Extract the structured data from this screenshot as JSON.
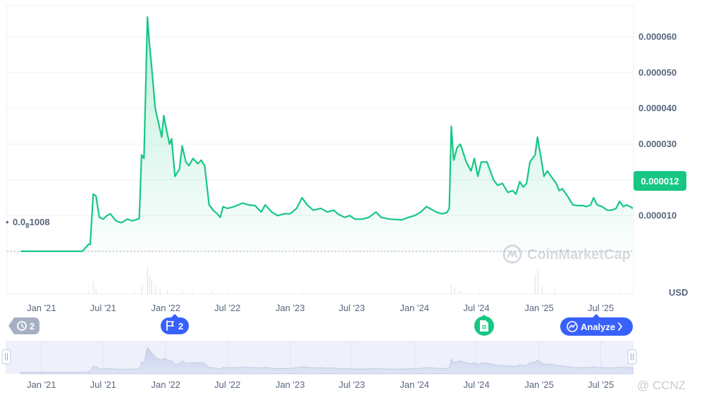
{
  "chart_data": {
    "type": "area",
    "currency_label": "USD",
    "y_ticks": [
      "0.000060",
      "0.000050",
      "0.000040",
      "0.000030",
      "0.000020",
      "0.000010"
    ],
    "y_tick_values": [
      6e-05,
      5e-05,
      4e-05,
      3e-05,
      2e-05,
      1e-05
    ],
    "ylim": [
      0,
      6.88e-05
    ],
    "x_ticks": [
      "Jan '21",
      "Jul '21",
      "Jan '22",
      "Jul '22",
      "Jan '23",
      "Jul '23",
      "Jan '24",
      "Jul '24",
      "Jan '25",
      "Jul '25"
    ],
    "x_tick_dates": [
      "2021-01-01",
      "2021-07-01",
      "2022-01-01",
      "2022-07-01",
      "2023-01-01",
      "2023-07-01",
      "2024-01-01",
      "2024-07-01",
      "2025-01-01",
      "2025-07-01"
    ],
    "xlim": [
      "2020-09-22",
      "2025-10-05"
    ],
    "start_price_label_main": "0.0",
    "start_price_label_sub": "8",
    "start_price_label_tail": "1008",
    "start_price": 1.008e-09,
    "current_price_label": "0.000012",
    "current_price": 1.2e-05,
    "line_color": "#16c784",
    "grid": true,
    "series": [
      {
        "values": [
          [
            "2020-11-01",
            1e-09
          ],
          [
            "2021-01-01",
            1e-09
          ],
          [
            "2021-03-01",
            1e-09
          ],
          [
            "2021-05-01",
            1e-09
          ],
          [
            "2021-05-20",
            2e-06
          ],
          [
            "2021-05-24",
            1.9e-06
          ],
          [
            "2021-06-02",
            1.6e-05
          ],
          [
            "2021-06-10",
            1.55e-05
          ],
          [
            "2021-06-20",
            9.5e-06
          ],
          [
            "2021-07-01",
            9e-06
          ],
          [
            "2021-07-12",
            1e-05
          ],
          [
            "2021-07-22",
            1.05e-05
          ],
          [
            "2021-08-08",
            8.5e-06
          ],
          [
            "2021-08-24",
            8e-06
          ],
          [
            "2021-09-10",
            9e-06
          ],
          [
            "2021-09-25",
            8.5e-06
          ],
          [
            "2021-10-15",
            9.2e-06
          ],
          [
            "2021-10-22",
            2.7e-05
          ],
          [
            "2021-10-29",
            2.6e-05
          ],
          [
            "2021-11-08",
            6.56e-05
          ],
          [
            "2021-11-14",
            5.8e-05
          ],
          [
            "2021-11-20",
            5.2e-05
          ],
          [
            "2021-12-01",
            4e-05
          ],
          [
            "2021-12-20",
            3.2e-05
          ],
          [
            "2021-12-26",
            3.8e-05
          ],
          [
            "2022-01-03",
            3.4e-05
          ],
          [
            "2022-01-12",
            3e-05
          ],
          [
            "2022-01-18",
            3.15e-05
          ],
          [
            "2022-01-28",
            2.1e-05
          ],
          [
            "2022-02-10",
            2.3e-05
          ],
          [
            "2022-02-18",
            2.95e-05
          ],
          [
            "2022-03-01",
            2.5e-05
          ],
          [
            "2022-03-10",
            2.4e-05
          ],
          [
            "2022-03-22",
            2.6e-05
          ],
          [
            "2022-04-05",
            2.45e-05
          ],
          [
            "2022-04-15",
            2.55e-05
          ],
          [
            "2022-04-25",
            2.4e-05
          ],
          [
            "2022-05-08",
            1.3e-05
          ],
          [
            "2022-05-20",
            1.15e-05
          ],
          [
            "2022-06-01",
            1.05e-05
          ],
          [
            "2022-06-10",
            9.5e-06
          ],
          [
            "2022-06-18",
            1.25e-05
          ],
          [
            "2022-07-01",
            1.2e-05
          ],
          [
            "2022-07-20",
            1.25e-05
          ],
          [
            "2022-08-15",
            1.35e-05
          ],
          [
            "2022-09-01",
            1.3e-05
          ],
          [
            "2022-09-20",
            1.28e-05
          ],
          [
            "2022-10-08",
            1.1e-05
          ],
          [
            "2022-10-20",
            1.3e-05
          ],
          [
            "2022-11-08",
            1.1e-05
          ],
          [
            "2022-11-25",
            1e-05
          ],
          [
            "2022-12-15",
            1.05e-05
          ],
          [
            "2023-01-01",
            1.05e-05
          ],
          [
            "2023-01-20",
            1.2e-05
          ],
          [
            "2023-02-05",
            1.5e-05
          ],
          [
            "2023-02-20",
            1.3e-05
          ],
          [
            "2023-03-10",
            1.15e-05
          ],
          [
            "2023-04-01",
            1.2e-05
          ],
          [
            "2023-04-20",
            1.1e-05
          ],
          [
            "2023-05-10",
            1.15e-05
          ],
          [
            "2023-05-20",
            1.05e-05
          ],
          [
            "2023-06-10",
            9.5e-06
          ],
          [
            "2023-06-25",
            1e-05
          ],
          [
            "2023-07-10",
            9e-06
          ],
          [
            "2023-08-01",
            9e-06
          ],
          [
            "2023-08-20",
            9.5e-06
          ],
          [
            "2023-09-10",
            1.1e-05
          ],
          [
            "2023-09-25",
            9.5e-06
          ],
          [
            "2023-10-20",
            9e-06
          ],
          [
            "2023-11-25",
            8.8e-06
          ],
          [
            "2023-12-15",
            9.5e-06
          ],
          [
            "2024-01-01",
            1e-05
          ],
          [
            "2024-01-20",
            1.1e-05
          ],
          [
            "2024-02-05",
            1.25e-05
          ],
          [
            "2024-02-15",
            1.2e-05
          ],
          [
            "2024-03-05",
            1.1e-05
          ],
          [
            "2024-03-20",
            1.05e-05
          ],
          [
            "2024-04-05",
            1.08e-05
          ],
          [
            "2024-04-12",
            1.2e-05
          ],
          [
            "2024-04-18",
            3.5e-05
          ],
          [
            "2024-04-25",
            2.55e-05
          ],
          [
            "2024-05-05",
            2.9e-05
          ],
          [
            "2024-05-15",
            3e-05
          ],
          [
            "2024-05-25",
            2.7e-05
          ],
          [
            "2024-06-01",
            2.5e-05
          ],
          [
            "2024-06-15",
            2.25e-05
          ],
          [
            "2024-06-25",
            2.6e-05
          ],
          [
            "2024-07-05",
            2.1e-05
          ],
          [
            "2024-07-15",
            2.5e-05
          ],
          [
            "2024-08-01",
            2.5e-05
          ],
          [
            "2024-08-20",
            2e-05
          ],
          [
            "2024-09-01",
            1.85e-05
          ],
          [
            "2024-09-15",
            1.9e-05
          ],
          [
            "2024-10-01",
            1.65e-05
          ],
          [
            "2024-10-15",
            1.7e-05
          ],
          [
            "2024-10-25",
            1.6e-05
          ],
          [
            "2024-11-05",
            1.95e-05
          ],
          [
            "2024-11-15",
            1.8e-05
          ],
          [
            "2024-11-25",
            1.9e-05
          ],
          [
            "2024-12-05",
            2.5e-05
          ],
          [
            "2024-12-20",
            2.7e-05
          ],
          [
            "2024-12-27",
            3.2e-05
          ],
          [
            "2025-01-05",
            2.7e-05
          ],
          [
            "2025-01-15",
            2.1e-05
          ],
          [
            "2025-01-25",
            2.25e-05
          ],
          [
            "2025-02-05",
            2.1e-05
          ],
          [
            "2025-02-20",
            1.9e-05
          ],
          [
            "2025-03-01",
            1.7e-05
          ],
          [
            "2025-03-10",
            1.75e-05
          ],
          [
            "2025-03-25",
            1.55e-05
          ],
          [
            "2025-04-10",
            1.3e-05
          ],
          [
            "2025-04-25",
            1.28e-05
          ],
          [
            "2025-05-10",
            1.28e-05
          ],
          [
            "2025-05-20",
            1.25e-05
          ],
          [
            "2025-06-01",
            1.3e-05
          ],
          [
            "2025-06-10",
            1.5e-05
          ],
          [
            "2025-06-20",
            1.3e-05
          ],
          [
            "2025-07-05",
            1.25e-05
          ],
          [
            "2025-07-20",
            1.15e-05
          ],
          [
            "2025-08-01",
            1.15e-05
          ],
          [
            "2025-08-15",
            1.2e-05
          ],
          [
            "2025-08-25",
            1.4e-05
          ],
          [
            "2025-09-05",
            1.25e-05
          ],
          [
            "2025-09-15",
            1.3e-05
          ],
          [
            "2025-09-25",
            1.25e-05
          ],
          [
            "2025-10-03",
            1.2e-05
          ]
        ]
      }
    ]
  },
  "volume": {
    "bars": [
      [
        "2021-05-20",
        1.0
      ],
      [
        "2021-06-02",
        4.5
      ],
      [
        "2021-06-10",
        2.0
      ],
      [
        "2021-07-15",
        0.4
      ],
      [
        "2021-08-15",
        0.4
      ],
      [
        "2021-10-01",
        0.8
      ],
      [
        "2021-10-22",
        3.0
      ],
      [
        "2021-11-08",
        10.0
      ],
      [
        "2021-11-14",
        6.5
      ],
      [
        "2021-11-20",
        5.0
      ],
      [
        "2021-12-01",
        3.0
      ],
      [
        "2021-12-15",
        2.0
      ],
      [
        "2022-01-05",
        1.5
      ],
      [
        "2022-02-18",
        1.0
      ],
      [
        "2022-03-20",
        0.7
      ],
      [
        "2022-05-15",
        1.0
      ],
      [
        "2022-07-01",
        0.6
      ],
      [
        "2022-09-01",
        0.5
      ],
      [
        "2023-02-05",
        0.8
      ],
      [
        "2023-09-15",
        0.4
      ],
      [
        "2024-04-18",
        3.5
      ],
      [
        "2024-04-28",
        2.5
      ],
      [
        "2024-05-15",
        1.2
      ],
      [
        "2024-07-10",
        0.6
      ],
      [
        "2024-12-20",
        7.0
      ],
      [
        "2024-12-28",
        9.0
      ],
      [
        "2025-01-10",
        3.0
      ],
      [
        "2025-02-15",
        1.0
      ],
      [
        "2025-06-10",
        0.6
      ],
      [
        "2025-08-25",
        0.5
      ]
    ]
  },
  "events": {
    "history_count": "2",
    "flag_count": "2",
    "analyze_label": "Analyze"
  },
  "watermark": {
    "text": "CoinMarketCap"
  },
  "navigator": {
    "x_ticks": [
      "Jan '21",
      "Jul '21",
      "Jan '22",
      "Jul '22",
      "Jan '23",
      "Jul '23",
      "Jan '24",
      "Jul '24",
      "Jan '25",
      "Jul '25"
    ]
  },
  "corner_watermark": "@ CCNZ"
}
